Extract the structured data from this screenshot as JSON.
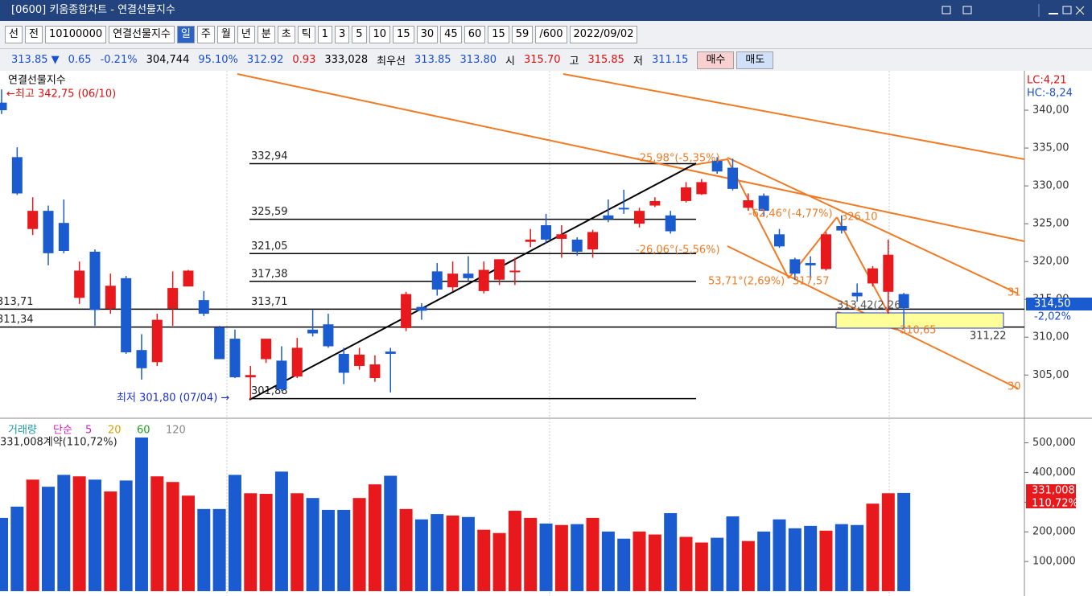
{
  "window": {
    "title": "[0600] 키움종합차트 - 연결선물지수"
  },
  "toolbar": {
    "items": [
      "선",
      "전",
      "10100000",
      "연결선물지수",
      "일",
      "주",
      "월",
      "년",
      "분",
      "초",
      "틱",
      "1",
      "3",
      "5",
      "10",
      "15",
      "30",
      "45",
      "60",
      "15",
      "59",
      "/600",
      "2022/09/02"
    ],
    "active_index": 4
  },
  "quote": {
    "items": [
      {
        "text": "313.85 ▼",
        "color": "#1a4fd0"
      },
      {
        "text": "0.65",
        "color": "#1a4fd0"
      },
      {
        "text": "-0.21%",
        "color": "#1a4fd0"
      },
      {
        "text": "304,744",
        "color": "#000000"
      },
      {
        "text": "95.10%",
        "color": "#1a4fd0"
      },
      {
        "text": "312.92",
        "color": "#1a4fd0"
      },
      {
        "text": "0.93",
        "color": "#e01010"
      },
      {
        "text": "333,028",
        "color": "#000000"
      },
      {
        "text": "최우선",
        "color": "#000000"
      },
      {
        "text": "313.85",
        "color": "#1a4fd0"
      },
      {
        "text": "313.80",
        "color": "#1a4fd0"
      },
      {
        "text": "시",
        "color": "#000000"
      },
      {
        "text": "315.70",
        "color": "#e01010"
      },
      {
        "text": "고",
        "color": "#000000"
      },
      {
        "text": "315.85",
        "color": "#e01010"
      },
      {
        "text": "저",
        "color": "#000000"
      },
      {
        "text": "311.15",
        "color": "#1a4fd0"
      }
    ],
    "buy": "매수",
    "sell": "매도"
  },
  "chart_data": [
    {
      "type": "candlestick",
      "title": "연결선물지수",
      "up_color": "#e8191c",
      "down_color": "#1a5bd0",
      "open": [
        341,
        333.8,
        324.3,
        326.7,
        325.1,
        315.2,
        321.3,
        313.8,
        317.8,
        308.3,
        306.7,
        313.8,
        316.7,
        314.9,
        311.3,
        309.8,
        304.7,
        307.1,
        306.9,
        304.8,
        311.0,
        311.7,
        307.8,
        306.2,
        304.6,
        308.1,
        311.2,
        314.0,
        318.7,
        316.6,
        318.4,
        316.1,
        317.6,
        318.6,
        322.6,
        324.8,
        323.0,
        322.9,
        321.6,
        326.1,
        327.1,
        325.0,
        327.4,
        326.1,
        328.0,
        328.9,
        333.3,
        332.4,
        327.1,
        328.7,
        323.6,
        320.3,
        319.8,
        319.0,
        324.7,
        315.9,
        317.1,
        316.0,
        315.7
      ],
      "high": [
        342.75,
        335.1,
        328.5,
        327.4,
        328.2,
        320.0,
        321.6,
        318.4,
        318.1,
        310.4,
        313.1,
        318.7,
        318.9,
        316.1,
        311.5,
        311.0,
        306.2,
        309.8,
        308.8,
        309.9,
        313.6,
        313.1,
        308.6,
        308.6,
        307.6,
        308.6,
        316.0,
        314.5,
        319.8,
        320.0,
        320.7,
        320.0,
        320.3,
        320.5,
        324.3,
        326.3,
        324.8,
        323.2,
        324.2,
        328.2,
        329.5,
        327.1,
        328.5,
        326.7,
        330.5,
        330.9,
        333.8,
        333.6,
        329.0,
        329.0,
        324.3,
        320.5,
        320.7,
        323.9,
        326.1,
        317.1,
        319.4,
        322.9,
        315.85
      ],
      "low": [
        339.5,
        328.8,
        323.5,
        319.5,
        321.1,
        314.4,
        311.5,
        313.1,
        307.8,
        304.4,
        306.2,
        311.5,
        316.7,
        312.8,
        307.1,
        304.6,
        301.8,
        306.6,
        302.9,
        304.6,
        310.1,
        308.6,
        303.8,
        305.7,
        304.1,
        302.7,
        310.8,
        312.3,
        315.5,
        316.1,
        317.4,
        315.8,
        316.9,
        316.9,
        321.9,
        322.4,
        320.5,
        320.8,
        320.5,
        325.2,
        326.3,
        324.5,
        327.2,
        323.7,
        327.8,
        328.8,
        331.6,
        329.4,
        326.7,
        326.0,
        321.8,
        317.6,
        317.6,
        318.8,
        323.7,
        314.7,
        316.7,
        313.1,
        311.15
      ],
      "close": [
        340,
        329.0,
        326.7,
        321.1,
        321.4,
        318.8,
        313.6,
        316.8,
        308.0,
        305.9,
        312.3,
        316.5,
        318.8,
        313.1,
        307.1,
        304.7,
        305.0,
        309.8,
        303.1,
        308.6,
        310.5,
        308.8,
        305.3,
        307.7,
        306.4,
        307.8,
        315.7,
        313.5,
        316.3,
        318.4,
        317.8,
        318.9,
        320.3,
        318.8,
        322.9,
        322.9,
        323.6,
        321.3,
        323.9,
        325.6,
        326.9,
        326.7,
        328.0,
        324.0,
        329.8,
        330.5,
        331.9,
        329.6,
        328.1,
        326.7,
        322.0,
        318.4,
        319.5,
        323.6,
        324.1,
        315.4,
        319.1,
        320.9,
        313.85
      ],
      "ylim": [
        299.5,
        345
      ],
      "yticks": [
        {
          "value": 305,
          "label": "305,00"
        },
        {
          "value": 310,
          "label": "310,00"
        },
        {
          "value": 315,
          "label": "315,00"
        },
        {
          "value": 320,
          "label": "320,00"
        },
        {
          "value": 325,
          "label": "325,00"
        },
        {
          "value": 330,
          "label": "330,00"
        },
        {
          "value": 335,
          "label": "335,00"
        },
        {
          "value": 340,
          "label": "340,00"
        }
      ],
      "grid": false,
      "levels": [
        {
          "value": 332.94,
          "label": "332,94"
        },
        {
          "value": 325.59,
          "label": "325,59"
        },
        {
          "value": 321.05,
          "label": "321,05"
        },
        {
          "value": 317.38,
          "label": "317,38"
        },
        {
          "value": 313.71,
          "label": "313,71"
        },
        {
          "value": 311.34,
          "label": "311,34"
        },
        {
          "value": 301.88,
          "label": "301,88"
        }
      ],
      "annotations": [
        "←최고 342,75 (06/10)",
        "최저 301,80 (07/04) →",
        "-25,98°(-5,35%)",
        "-62,46°(-4,77%)",
        "-26,06°(-5,56%)",
        "53,71°(2,69%)",
        "317,57",
        "326,10",
        "313,42(2,26",
        "310,65",
        "311,22",
        "-2,02%",
        "314,50",
        "LC:4,21",
        "HC:-8,24",
        "31",
        "30"
      ]
    },
    {
      "type": "bar",
      "title": "거래량",
      "legend": [
        {
          "name": "단순",
          "color": "#d020c0"
        },
        {
          "name": "5",
          "color": "#d020c0"
        },
        {
          "name": "20",
          "color": "#e0a000"
        },
        {
          "name": "60",
          "color": "#20a020"
        },
        {
          "name": "120",
          "color": "#888888"
        }
      ],
      "values": [
        247000,
        285000,
        376000,
        352000,
        392000,
        387000,
        376000,
        336000,
        373000,
        518000,
        387000,
        368000,
        322000,
        277000,
        277000,
        392000,
        330000,
        328000,
        403000,
        330000,
        314000,
        274000,
        274000,
        314000,
        360000,
        389000,
        277000,
        242000,
        260000,
        255000,
        250000,
        207000,
        196000,
        271000,
        247000,
        228000,
        223000,
        226000,
        247000,
        201000,
        177000,
        201000,
        191000,
        263000,
        183000,
        164000,
        180000,
        252000,
        169000,
        201000,
        242000,
        212000,
        220000,
        204000,
        226000,
        223000,
        295000,
        330000,
        331008
      ],
      "ylim": [
        0,
        572000
      ],
      "yticks": [
        {
          "value": 100000,
          "label": "100,000"
        },
        {
          "value": 200000,
          "label": "200,000"
        },
        {
          "value": 300000,
          "label": "300,000"
        },
        {
          "value": 400000,
          "label": "400,000"
        },
        {
          "value": 500000,
          "label": "500,000"
        }
      ],
      "annotations": [
        "331,008계약(110,72%)",
        "331,008",
        "110,72%"
      ]
    }
  ]
}
